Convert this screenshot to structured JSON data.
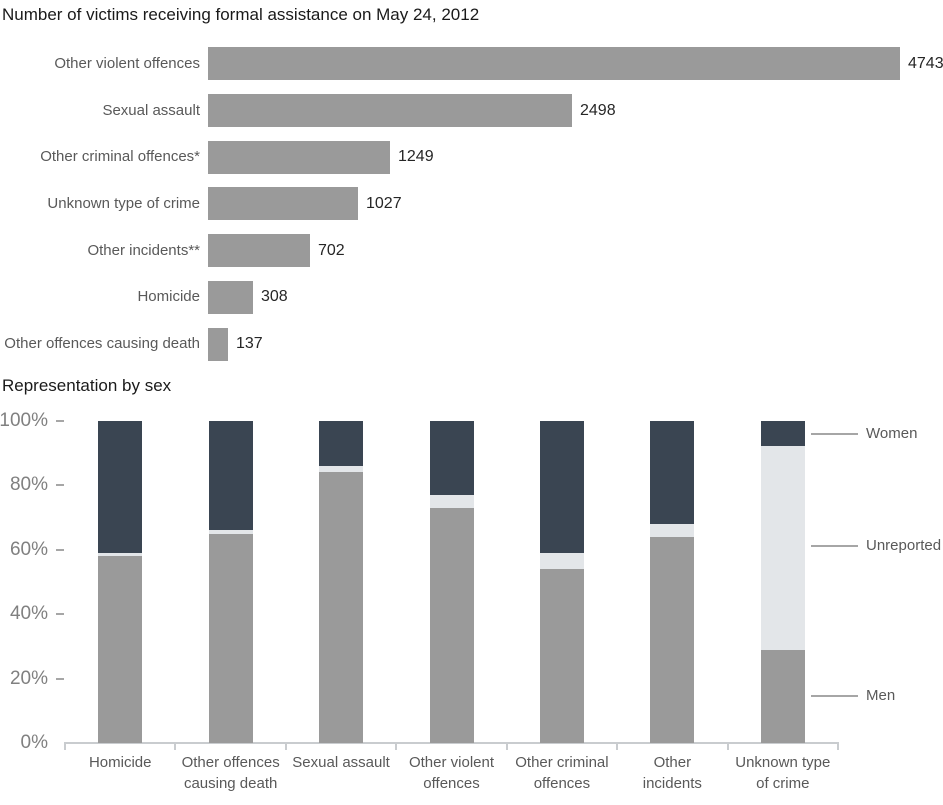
{
  "colors": {
    "bar_gray": "#9a9a9a",
    "men": "#9a9a9a",
    "unreported": "#e3e6e9",
    "women": "#3a4552",
    "axis_line": "#c9cccf",
    "y_tick_dash": "#a6a6a6",
    "percent_label": "#808080",
    "category_label": "#595959",
    "value_label": "#262626",
    "title": "#1a1a1a",
    "leader_line": "#a6a6a6"
  },
  "chart_data": [
    {
      "type": "bar",
      "orientation": "horizontal",
      "title": "Number of victims receiving formal assistance on May 24, 2012",
      "categories": [
        "Other violent offences",
        "Sexual assault",
        "Other criminal offences*",
        "Unknown type of crime",
        "Other incidents**",
        "Homicide",
        "Other offences causing death"
      ],
      "values": [
        4743,
        2498,
        1249,
        1027,
        702,
        308,
        137
      ],
      "xlim": [
        0,
        4743
      ],
      "grid": false,
      "data_labels": true,
      "bar_color_key": "bar_gray"
    },
    {
      "type": "bar",
      "stacked": true,
      "units": "percent",
      "title": "Representation by sex",
      "categories": [
        "Homicide",
        "Other offences\ncausing death",
        "Sexual assault",
        "Other violent\noffences",
        "Other criminal\noffences",
        "Other\nincidents",
        "Unknown type\nof crime"
      ],
      "series": [
        {
          "name": "Men",
          "color_key": "men",
          "values": [
            58,
            65,
            84,
            73,
            54,
            64,
            29
          ]
        },
        {
          "name": "Unreported",
          "color_key": "unreported",
          "values": [
            1,
            1,
            2,
            4,
            5,
            4,
            63
          ]
        },
        {
          "name": "Women",
          "color_key": "women",
          "values": [
            41,
            34,
            14,
            23,
            41,
            32,
            8
          ]
        }
      ],
      "ylim": [
        0,
        100
      ],
      "ytick_labels": [
        "100%",
        "80%",
        "60%",
        "40%",
        "20%",
        "0%"
      ],
      "legend": {
        "position": "right",
        "entries": [
          "Women",
          "Unreported",
          "Men"
        ]
      }
    }
  ]
}
